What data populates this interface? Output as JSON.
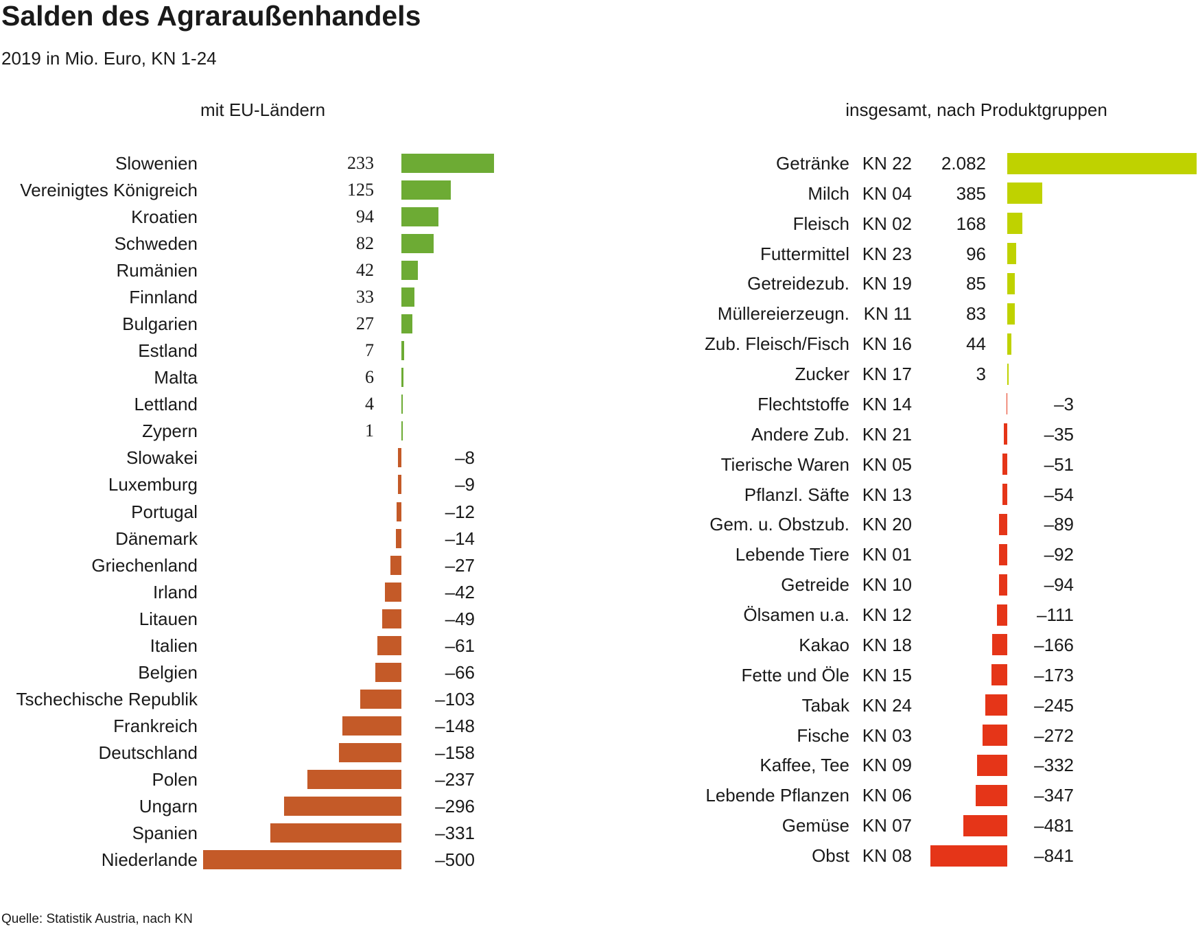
{
  "title": "Salden des Agraraußenhandels",
  "subtitle": "2019 in Mio. Euro, KN 1-24",
  "source": "Quelle: Statistik Austria, nach KN",
  "colors": {
    "eu_pos": "#6dab34",
    "eu_neg": "#c45a28",
    "prod_pos": "#bfd200",
    "prod_neg": "#e53518"
  },
  "chart_data": [
    {
      "type": "bar",
      "orientation": "horizontal",
      "title": "mit EU-Ländern",
      "unit": "Mio. Euro",
      "categories": [
        "Slowenien",
        "Vereinigtes Königreich",
        "Kroatien",
        "Schweden",
        "Rumänien",
        "Finnland",
        "Bulgarien",
        "Estland",
        "Malta",
        "Lettland",
        "Zypern",
        "Slowakei",
        "Luxemburg",
        "Portugal",
        "Dänemark",
        "Griechenland",
        "Irland",
        "Litauen",
        "Italien",
        "Belgien",
        "Tschechische Republik",
        "Frankreich",
        "Deutschland",
        "Polen",
        "Ungarn",
        "Spanien",
        "Niederlande"
      ],
      "values": [
        233,
        125,
        94,
        82,
        42,
        33,
        27,
        7,
        6,
        4,
        1,
        -8,
        -9,
        -12,
        -14,
        -27,
        -42,
        -49,
        -61,
        -66,
        -103,
        -148,
        -158,
        -237,
        -296,
        -331,
        -500
      ],
      "labels": [
        "233",
        "125",
        "94",
        "82",
        "42",
        "33",
        "27",
        "7",
        "6",
        "4",
        "1",
        "–8",
        "–9",
        "–12",
        "–14",
        "–27",
        "–42",
        "–49",
        "–61",
        "–66",
        "–103",
        "–148",
        "–158",
        "–237",
        "–296",
        "–331",
        "–500"
      ]
    },
    {
      "type": "bar",
      "orientation": "horizontal",
      "title": "insgesamt, nach Produktgruppen",
      "unit": "Mio. Euro",
      "categories": [
        "Getränke",
        "Milch",
        "Fleisch",
        "Futtermittel",
        "Getreidezub.",
        "Müllereierzeugn.",
        "Zub. Fleisch/Fisch",
        "Zucker",
        "Flechtstoffe",
        "Andere Zub.",
        "Tierische Waren",
        "Pflanzl. Säfte",
        "Gem. u. Obstzub.",
        "Lebende Tiere",
        "Getreide",
        "Ölsamen u.a.",
        "Kakao",
        "Fette und Öle",
        "Tabak",
        "Fische",
        "Kaffee, Tee",
        "Lebende Pflanzen",
        "Gemüse",
        "Obst"
      ],
      "codes": [
        "KN 22",
        "KN 04",
        "KN 02",
        "KN 23",
        "KN 19",
        "KN 11",
        "KN 16",
        "KN 17",
        "KN 14",
        "KN 21",
        "KN 05",
        "KN 13",
        "KN 20",
        "KN 01",
        "KN 10",
        "KN 12",
        "KN 18",
        "KN 15",
        "KN 24",
        "KN 03",
        "KN 09",
        "KN 06",
        "KN 07",
        "KN 08"
      ],
      "values": [
        2082,
        385,
        168,
        96,
        85,
        83,
        44,
        3,
        -3,
        -35,
        -51,
        -54,
        -89,
        -92,
        -94,
        -111,
        -166,
        -173,
        -245,
        -272,
        -332,
        -347,
        -481,
        -841
      ],
      "labels": [
        "2.082",
        "385",
        "168",
        "96",
        "85",
        "83",
        "44",
        "3",
        "–3",
        "–35",
        "–51",
        "–54",
        "–89",
        "–92",
        "–94",
        "–111",
        "–166",
        "–173",
        "–245",
        "–272",
        "–332",
        "–347",
        "–481",
        "–841"
      ]
    }
  ]
}
